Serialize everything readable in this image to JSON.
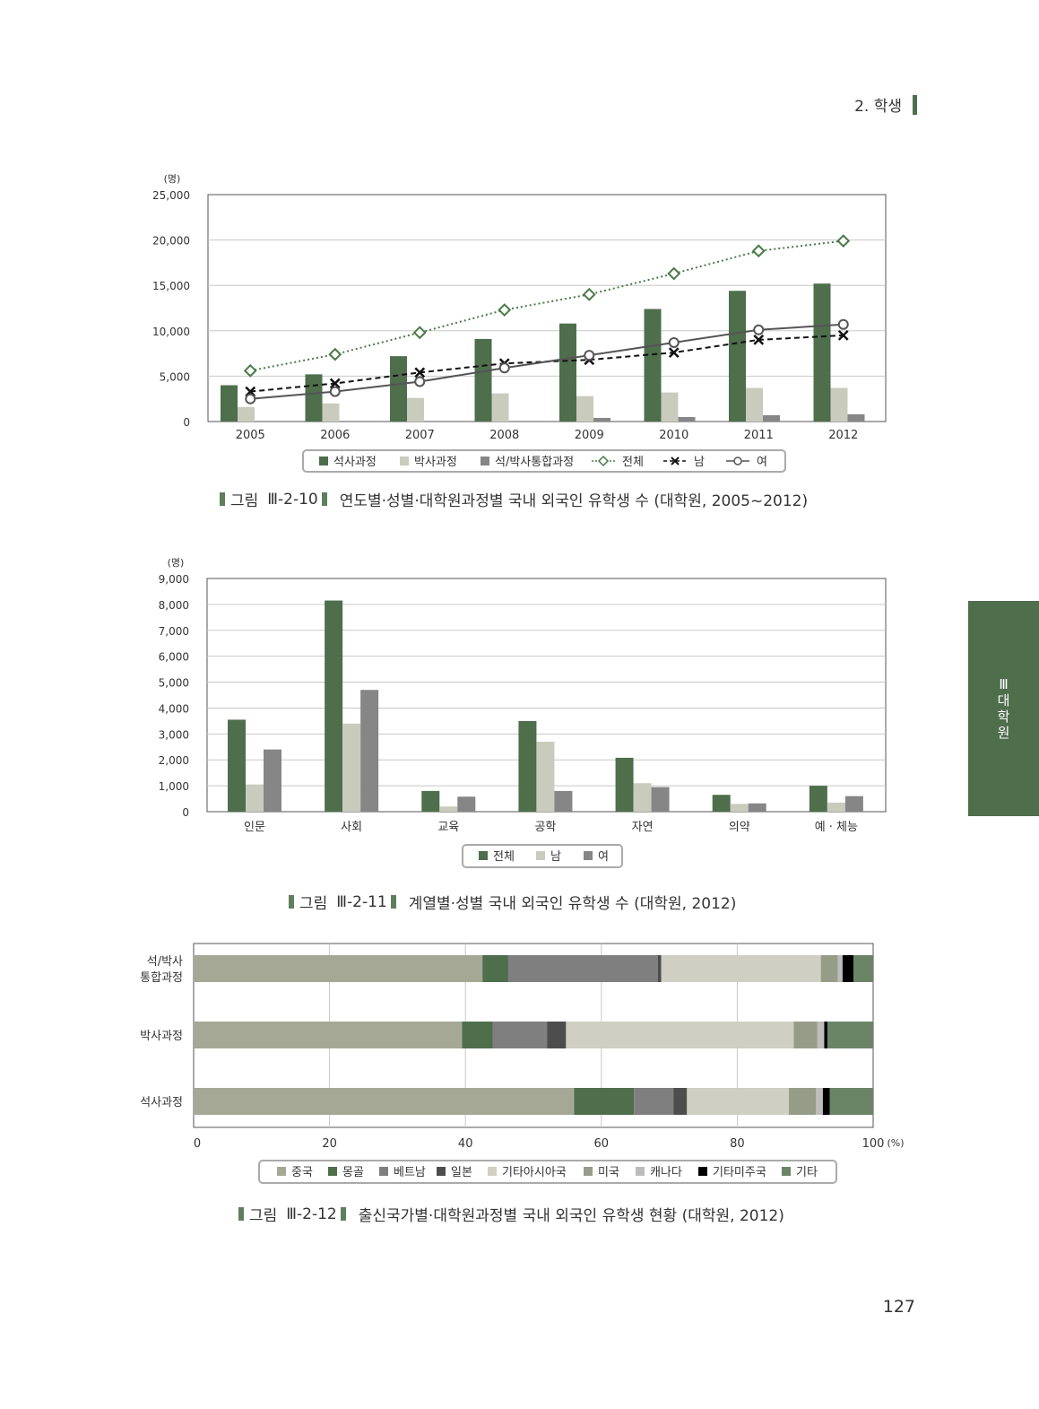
{
  "header": {
    "section": "2. 학생"
  },
  "side_tab": {
    "chars": [
      "Ⅲ",
      "대",
      "학",
      "원"
    ]
  },
  "page_number": "127",
  "captions": [
    {
      "prefix": "그림",
      "number": "Ⅲ-2-10",
      "text": "연도별·성별·대학원과정별 국내 외국인 유학생 수 (대학원, 2005~2012)"
    },
    {
      "prefix": "그림",
      "number": "Ⅲ-2-11",
      "text": "계열별·성별 국내 외국인 유학생 수 (대학원, 2012)"
    },
    {
      "prefix": "그림",
      "number": "Ⅲ-2-12",
      "text": "출신국가별·대학원과정별 국내 외국인 유학생 현황 (대학원, 2012)"
    }
  ],
  "chart_data": [
    {
      "type": "bar",
      "unit_label": "(명)",
      "categories": [
        "2005",
        "2006",
        "2007",
        "2008",
        "2009",
        "2010",
        "2011",
        "2012"
      ],
      "ylim": [
        0,
        25000
      ],
      "yticks": [
        "0",
        "5,000",
        "10,000",
        "15,000",
        "20,000",
        "25,000"
      ],
      "series": [
        {
          "name": "석사과정",
          "kind": "bar",
          "color": "#4e6e4c",
          "values": [
            4000,
            5200,
            7200,
            9100,
            10800,
            12400,
            14400,
            15200
          ]
        },
        {
          "name": "박사과정",
          "kind": "bar",
          "color": "#c9cbbd",
          "values": [
            1600,
            2000,
            2600,
            3100,
            2800,
            3200,
            3700,
            3700
          ]
        },
        {
          "name": "석/박사통합과정",
          "kind": "bar",
          "color": "#868686",
          "values": [
            0,
            0,
            0,
            0,
            400,
            500,
            700,
            800
          ]
        },
        {
          "name": "전체",
          "kind": "line",
          "marker": "diamond",
          "color": "#4a7a48",
          "values": [
            5600,
            7400,
            9800,
            12300,
            14000,
            16300,
            18800,
            19900
          ]
        },
        {
          "name": "남",
          "kind": "line",
          "marker": "x",
          "color": "#111111",
          "values": [
            3300,
            4200,
            5400,
            6400,
            6800,
            7600,
            9000,
            9500
          ]
        },
        {
          "name": "여",
          "kind": "line",
          "marker": "circle",
          "color": "#555555",
          "values": [
            2500,
            3300,
            4400,
            5900,
            7300,
            8700,
            10100,
            10700
          ]
        }
      ],
      "legend": [
        "석사과정",
        "박사과정",
        "석/박사통합과정",
        "전체",
        "남",
        "여"
      ]
    },
    {
      "type": "bar",
      "unit_label": "(명)",
      "categories": [
        "인문",
        "사회",
        "교육",
        "공학",
        "자연",
        "의약",
        "예 · 체능"
      ],
      "ylim": [
        0,
        9000
      ],
      "yticks": [
        "0",
        "1,000",
        "2,000",
        "3,000",
        "4,000",
        "5,000",
        "6,000",
        "7,000",
        "8,000",
        "9,000"
      ],
      "series": [
        {
          "name": "전체",
          "color": "#4e6e4c",
          "values": [
            3550,
            8150,
            800,
            3500,
            2080,
            650,
            1000
          ]
        },
        {
          "name": "남",
          "color": "#c9cbbd",
          "values": [
            1050,
            3400,
            200,
            2700,
            1100,
            300,
            350
          ]
        },
        {
          "name": "여",
          "color": "#868686",
          "values": [
            2400,
            4700,
            580,
            800,
            950,
            320,
            600
          ]
        }
      ],
      "legend": [
        "전체",
        "남",
        "여"
      ]
    },
    {
      "type": "bar",
      "orientation": "horizontal",
      "stacked": true,
      "unit_label": "(%)",
      "categories": [
        "석/박사\n통합과정",
        "박사과정",
        "석사과정"
      ],
      "xlim": [
        0,
        100
      ],
      "xticks": [
        "0",
        "20",
        "40",
        "60",
        "80",
        "100"
      ],
      "series": [
        {
          "name": "중국",
          "color": "#a6a896",
          "values": [
            42.5,
            39.5,
            56.0
          ]
        },
        {
          "name": "몽골",
          "color": "#4e6e4c",
          "values": [
            3.8,
            4.5,
            8.8
          ]
        },
        {
          "name": "베트남",
          "color": "#7f7f7f",
          "values": [
            22.0,
            8.0,
            5.8
          ]
        },
        {
          "name": "일본",
          "color": "#4d4d4d",
          "values": [
            0.5,
            2.8,
            2.0
          ]
        },
        {
          "name": "기타아시아국",
          "color": "#cfd0c3",
          "values": [
            23.5,
            33.5,
            15.0
          ]
        },
        {
          "name": "미국",
          "color": "#979c88",
          "values": [
            2.5,
            3.5,
            4.0
          ]
        },
        {
          "name": "캐나다",
          "color": "#bdbdbd",
          "values": [
            0.7,
            1.0,
            1.0
          ]
        },
        {
          "name": "기타미주국",
          "color": "#000000",
          "values": [
            1.6,
            0.5,
            1.0
          ]
        },
        {
          "name": "기타",
          "color": "#6a8566",
          "values": [
            2.9,
            6.7,
            6.4
          ]
        }
      ],
      "legend": [
        "중국",
        "몽골",
        "베트남",
        "일본",
        "기타아시아국",
        "미국",
        "캐나다",
        "기타미주국",
        "기타"
      ]
    }
  ]
}
